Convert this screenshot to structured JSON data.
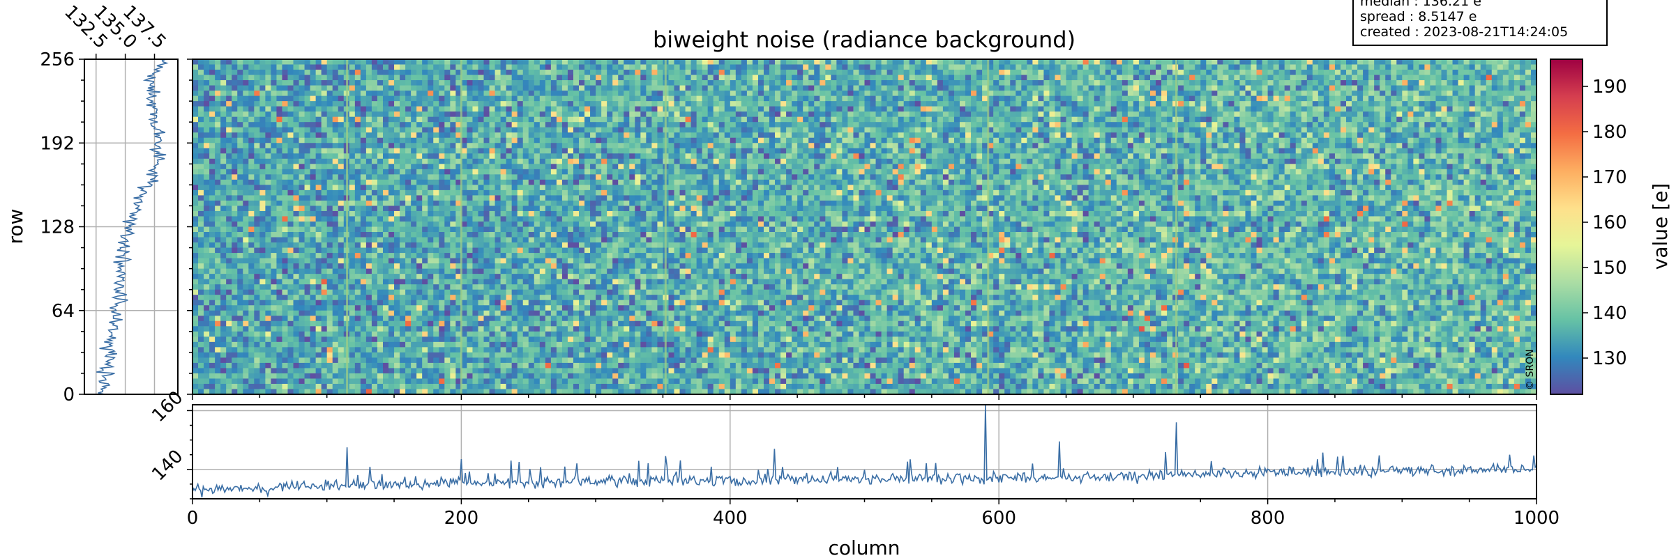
{
  "chart_data": [
    {
      "type": "heatmap",
      "title": "biweight noise (radiance background)",
      "xlim": [
        0,
        1000
      ],
      "ylim": [
        0,
        256
      ],
      "xlabel": "",
      "ylabel": "row",
      "x_ticks": [
        "0",
        "200",
        "400",
        "600",
        "800",
        "1000"
      ],
      "y_ticks": [
        "0",
        "64",
        "128",
        "192",
        "256"
      ],
      "colormap": "Spectral_r",
      "colorbar": {
        "label": "value [e]",
        "range": [
          122,
          196
        ],
        "ticks": [
          "130",
          "140",
          "150",
          "160",
          "170",
          "180",
          "190"
        ],
        "colors": [
          "#5e4fa2",
          "#3288bd",
          "#66c2a5",
          "#abdda4",
          "#e6f598",
          "#fee08b",
          "#fdae61",
          "#f46d43",
          "#d53e4f",
          "#9e0142"
        ]
      },
      "median_field": 136.21,
      "vertical_stripe_columns": [
        115,
        200,
        352,
        592,
        732
      ],
      "copyright": "© SRON"
    },
    {
      "type": "line",
      "panel": "row profile (left)",
      "ylabel": "row",
      "xlim": [
        131.5,
        139.5
      ],
      "x_ticks": [
        "132.5",
        "135.0",
        "137.5"
      ],
      "y_ticks": [
        "0",
        "64",
        "128",
        "192",
        "256"
      ],
      "color": "#3a6ea5",
      "values_by_row": {
        "rows": [
          0,
          16,
          32,
          48,
          64,
          80,
          96,
          112,
          128,
          144,
          160,
          176,
          192,
          208,
          224,
          240,
          256
        ],
        "values": [
          132.9,
          133.3,
          133.6,
          134.0,
          134.3,
          134.5,
          134.7,
          134.9,
          135.3,
          136.0,
          136.9,
          137.6,
          137.9,
          137.7,
          137.2,
          137.3,
          138.3
        ]
      }
    },
    {
      "type": "line",
      "panel": "column profile (bottom)",
      "xlabel": "column",
      "xlim": [
        0,
        1000
      ],
      "ylim": [
        130,
        162
      ],
      "x_ticks": [
        "0",
        "200",
        "400",
        "600",
        "800",
        "1000"
      ],
      "y_ticks": [
        "140",
        "160"
      ],
      "color": "#3a6ea5",
      "baseline": {
        "x": [
          0,
          100,
          200,
          300,
          400,
          500,
          600,
          700,
          800,
          900,
          1000
        ],
        "y": [
          132.5,
          134.5,
          135.5,
          136.0,
          136.3,
          136.6,
          137.0,
          137.8,
          138.8,
          139.6,
          140.0
        ]
      },
      "peaks": [
        {
          "x": 115,
          "y": 147.5
        },
        {
          "x": 200,
          "y": 143.5
        },
        {
          "x": 237,
          "y": 143.0
        },
        {
          "x": 352,
          "y": 144.5
        },
        {
          "x": 433,
          "y": 147.0
        },
        {
          "x": 590,
          "y": 162.0
        },
        {
          "x": 645,
          "y": 149.5
        },
        {
          "x": 732,
          "y": 156.0
        },
        {
          "x": 980,
          "y": 145.0
        }
      ]
    }
  ],
  "info_box": {
    "line1": "median : 136.21 e",
    "line2": "spread : 8.5147 e",
    "line3": "created : 2023-08-21T14:24:05"
  }
}
